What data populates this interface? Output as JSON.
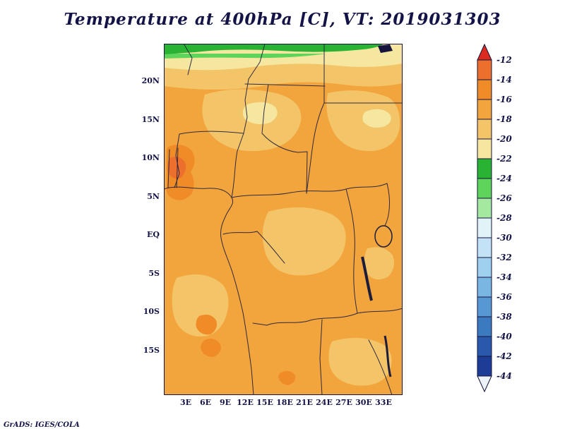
{
  "title": "Temperature at 400hPa [C], VT: 2019031303",
  "credit": "GrADS: IGES/COLA",
  "chart_data": {
    "type": "heatmap",
    "title": "Temperature at 400hPa [C], VT: 2019031303",
    "variable": "Temperature",
    "level": "400hPa",
    "units": "C",
    "valid_time_label": "VT: 2019031303",
    "lat_ticks": [
      "20N",
      "15N",
      "10N",
      "5N",
      "EQ",
      "5S",
      "10S",
      "15S"
    ],
    "lon_ticks": [
      "3E",
      "6E",
      "9E",
      "12E",
      "15E",
      "18E",
      "21E",
      "24E",
      "27E",
      "30E",
      "33E"
    ],
    "colorbar": {
      "levels": [
        -12,
        -14,
        -16,
        -18,
        -20,
        -22,
        -24,
        -26,
        -28,
        -30,
        -32,
        -34,
        -36,
        -38,
        -40,
        -42,
        -44
      ],
      "colors": [
        "#ec6f2d",
        "#f08c28",
        "#f2a53c",
        "#f4c468",
        "#f6e7a0",
        "#28b432",
        "#5ed45a",
        "#a5e8a0",
        "#e2f3f8",
        "#c3e2f5",
        "#9fd0ee",
        "#7ab6e2",
        "#5898d2",
        "#3c7ac0",
        "#2a58aa",
        "#1c3c96"
      ],
      "arrow_top_color": "#dc2a1e",
      "arrow_bottom_color": "#edf1f8",
      "outline_color": "#14143c"
    },
    "field_regions": [
      {
        "area": "most of the domain (Sahel, Central Africa, adjacent Atlantic)",
        "value_c": "-16 to -18"
      },
      {
        "area": "lighter patches over the Sahara, northeast Africa and central DR Congo",
        "value_c": "-18 to -20"
      },
      {
        "area": "pale band along the far north of the map (~24N)",
        "value_c": "-20 to -22"
      },
      {
        "area": "green strip at the northern map edge",
        "value_c": "-22 to -26"
      },
      {
        "area": "warm orange spots near the Gulf of Guinea coast (5-10N)",
        "value_c": "-12 to -16"
      },
      {
        "area": "small warm spots near the coast around 10S and inland near 18E",
        "value_c": "-14 to -16"
      }
    ],
    "axes": {
      "lon_range_deg_e": [
        0,
        36
      ],
      "lat_range_deg": [
        -21,
        25
      ],
      "grid": false,
      "legend_position": "right-colorbar"
    }
  },
  "text_color": "#131347"
}
